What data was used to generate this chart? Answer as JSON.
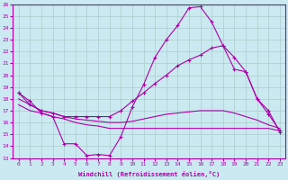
{
  "xlabel": "Windchill (Refroidissement éolien,°C)",
  "bg_color": "#cbe9f0",
  "line_color": "#aa00aa",
  "grid_color": "#aacccc",
  "xlim": [
    -0.5,
    23.5
  ],
  "ylim": [
    13,
    26
  ],
  "yticks": [
    13,
    14,
    15,
    16,
    17,
    18,
    19,
    20,
    21,
    22,
    23,
    24,
    25,
    26
  ],
  "xticks": [
    0,
    1,
    2,
    3,
    4,
    5,
    6,
    7,
    8,
    9,
    10,
    11,
    12,
    13,
    14,
    15,
    16,
    17,
    18,
    19,
    20,
    21,
    22,
    23
  ],
  "line1_x": [
    0,
    1,
    2,
    3,
    4,
    5,
    6,
    7,
    8,
    9,
    10,
    11,
    12,
    13,
    14,
    15,
    16,
    17,
    18,
    19,
    20,
    21,
    22,
    23
  ],
  "line1_y": [
    18.5,
    17.8,
    16.8,
    16.5,
    14.2,
    14.2,
    13.2,
    13.3,
    13.2,
    14.8,
    17.3,
    19.2,
    21.5,
    23.0,
    24.2,
    25.7,
    25.8,
    24.5,
    22.5,
    20.5,
    20.3,
    18.0,
    16.7,
    15.3
  ],
  "line2_x": [
    0,
    1,
    2,
    3,
    4,
    5,
    6,
    7,
    8,
    9,
    10,
    11,
    12,
    13,
    14,
    15,
    16,
    17,
    18,
    19,
    20,
    21,
    22,
    23
  ],
  "line2_y": [
    18.5,
    17.5,
    17.0,
    16.8,
    16.5,
    16.5,
    16.5,
    16.5,
    16.5,
    17.0,
    17.8,
    18.5,
    19.3,
    20.0,
    20.8,
    21.3,
    21.7,
    22.3,
    22.5,
    21.5,
    20.3,
    18.0,
    17.0,
    15.2
  ],
  "line3_x": [
    0,
    1,
    2,
    3,
    4,
    5,
    6,
    7,
    8,
    9,
    10,
    11,
    12,
    13,
    14,
    15,
    16,
    17,
    18,
    19,
    20,
    21,
    22,
    23
  ],
  "line3_y": [
    18.0,
    17.5,
    17.0,
    16.8,
    16.5,
    16.3,
    16.2,
    16.1,
    16.0,
    16.0,
    16.1,
    16.3,
    16.5,
    16.7,
    16.8,
    16.9,
    17.0,
    17.0,
    17.0,
    16.8,
    16.5,
    16.2,
    15.8,
    15.5
  ],
  "line4_x": [
    0,
    1,
    2,
    3,
    4,
    5,
    6,
    7,
    8,
    9,
    10,
    11,
    12,
    13,
    14,
    15,
    16,
    17,
    18,
    19,
    20,
    21,
    22,
    23
  ],
  "line4_y": [
    17.5,
    17.0,
    16.8,
    16.5,
    16.3,
    16.0,
    15.8,
    15.7,
    15.5,
    15.5,
    15.5,
    15.5,
    15.5,
    15.5,
    15.5,
    15.5,
    15.5,
    15.5,
    15.5,
    15.5,
    15.5,
    15.5,
    15.5,
    15.3
  ]
}
